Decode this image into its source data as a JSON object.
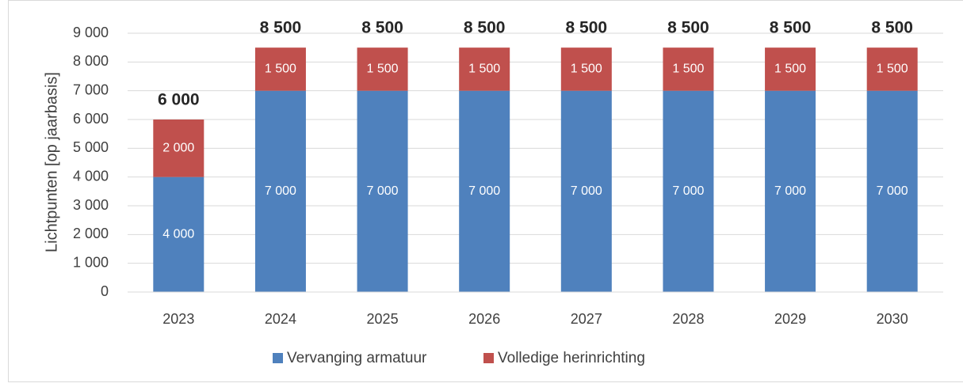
{
  "chart_data": {
    "type": "stacked-bar",
    "y_label": "Lichtpunten [op jaarbasis]",
    "categories": [
      "2023",
      "2024",
      "2025",
      "2026",
      "2027",
      "2028",
      "2029",
      "2030"
    ],
    "series": [
      {
        "name": "Vervanging armatuur",
        "color": "#4f81bd",
        "values": [
          4000,
          7000,
          7000,
          7000,
          7000,
          7000,
          7000,
          7000
        ],
        "value_labels": [
          "4 000",
          "7 000",
          "7 000",
          "7 000",
          "7 000",
          "7 000",
          "7 000",
          "7 000"
        ]
      },
      {
        "name": "Volledige herinrichting",
        "color": "#c0504d",
        "values": [
          2000,
          1500,
          1500,
          1500,
          1500,
          1500,
          1500,
          1500
        ],
        "value_labels": [
          "2 000",
          "1 500",
          "1 500",
          "1 500",
          "1 500",
          "1 500",
          "1 500",
          "1 500"
        ]
      }
    ],
    "totals": {
      "values": [
        6000,
        8500,
        8500,
        8500,
        8500,
        8500,
        8500,
        8500
      ],
      "value_labels": [
        "6 000",
        "8 500",
        "8 500",
        "8 500",
        "8 500",
        "8 500",
        "8 500",
        "8 500"
      ]
    },
    "ylim": [
      0,
      9000
    ],
    "yticks": [
      {
        "value": 0,
        "label": "0"
      },
      {
        "value": 1000,
        "label": "1 000"
      },
      {
        "value": 2000,
        "label": "2 000"
      },
      {
        "value": 3000,
        "label": "3 000"
      },
      {
        "value": 4000,
        "label": "4 000"
      },
      {
        "value": 5000,
        "label": "5 000"
      },
      {
        "value": 6000,
        "label": "6 000"
      },
      {
        "value": 7000,
        "label": "7 000"
      },
      {
        "value": 8000,
        "label": "8 000"
      },
      {
        "value": 9000,
        "label": "9 000"
      }
    ],
    "grid": true,
    "legend": "bottom"
  }
}
